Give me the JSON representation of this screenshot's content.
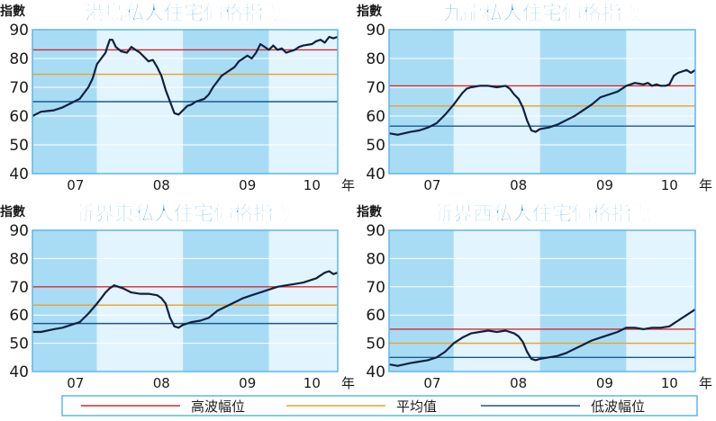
{
  "colors": {
    "high": "#d42a2a",
    "average": "#f0a020",
    "low": "#1a5a8a",
    "title": "#1a8ad2",
    "index_line": "#102040",
    "band_dark": "#a8dcf5",
    "band_light": "#e2f4fd",
    "frame": "#5ab8e8"
  },
  "legend": {
    "high": "高波幅位",
    "average": "平均值",
    "low": "低波幅位"
  },
  "chart_data": [
    {
      "type": "line",
      "title": "港島私人住宅價格指數",
      "ylabel": "指數",
      "xunit": "年",
      "ylim": [
        40,
        90
      ],
      "yticks": [
        "40",
        "50",
        "60",
        "70",
        "80",
        "90"
      ],
      "xlim": [
        2006.75,
        2010.3
      ],
      "xticks": [
        {
          "label": "07",
          "x": 2007.25
        },
        {
          "label": "08",
          "x": 2008.25
        },
        {
          "label": "09",
          "x": 2009.25
        },
        {
          "label": "10",
          "x": 2010.0
        }
      ],
      "reference_lines": {
        "high": 83,
        "average": 74.5,
        "low": 65
      },
      "series": [
        {
          "x": [
            2006.75,
            2006.85,
            2007.0,
            2007.1,
            2007.2,
            2007.3,
            2007.4,
            2007.45,
            2007.5,
            2007.55,
            2007.6,
            2007.62,
            2007.65,
            2007.68,
            2007.72,
            2007.78,
            2007.85,
            2007.9,
            2007.95,
            2008.0,
            2008.05,
            2008.1,
            2008.15,
            2008.2,
            2008.25,
            2008.3,
            2008.35,
            2008.4,
            2008.45,
            2008.5,
            2008.55,
            2008.6,
            2008.65,
            2008.7,
            2008.75,
            2008.8,
            2008.85,
            2008.9,
            2008.95,
            2009.0,
            2009.05,
            2009.1,
            2009.15,
            2009.2,
            2009.25,
            2009.3,
            2009.35,
            2009.4,
            2009.5,
            2009.55,
            2009.6,
            2009.65,
            2009.7,
            2009.75,
            2009.8,
            2009.85,
            2009.9,
            2010.0,
            2010.05,
            2010.1,
            2010.15,
            2010.2,
            2010.25,
            2010.3
          ],
          "values": [
            60.0,
            61.5,
            62.0,
            63.0,
            64.5,
            66.0,
            70.0,
            73.0,
            78.0,
            80.0,
            82.0,
            84.0,
            86.5,
            86.5,
            84.0,
            82.5,
            82.0,
            84.0,
            83.0,
            82.0,
            80.5,
            79.0,
            79.5,
            77.0,
            74.0,
            69.0,
            65.0,
            61.0,
            60.5,
            62.0,
            63.5,
            64.0,
            65.0,
            65.5,
            66.0,
            67.5,
            70.0,
            72.0,
            74.0,
            75.0,
            76.0,
            77.0,
            79.0,
            80.0,
            81.0,
            80.0,
            82.0,
            85.0,
            83.0,
            84.5,
            83.0,
            83.5,
            82.0,
            82.5,
            83.0,
            84.0,
            84.5,
            85.0,
            86.0,
            86.5,
            85.5,
            87.5,
            87.0,
            87.5
          ]
        }
      ]
    },
    {
      "type": "line",
      "title": "九龍私人住宅價格指數",
      "ylabel": "指數",
      "xunit": "年",
      "ylim": [
        40,
        90
      ],
      "yticks": [
        "40",
        "50",
        "60",
        "70",
        "80",
        "90"
      ],
      "xlim": [
        2006.75,
        2010.3
      ],
      "xticks": [
        {
          "label": "07",
          "x": 2007.25
        },
        {
          "label": "08",
          "x": 2008.25
        },
        {
          "label": "09",
          "x": 2009.25
        },
        {
          "label": "10",
          "x": 2010.0
        }
      ],
      "reference_lines": {
        "high": 70.5,
        "average": 63.5,
        "low": 56.5
      },
      "series": [
        {
          "x": [
            2006.75,
            2006.85,
            2007.0,
            2007.1,
            2007.2,
            2007.3,
            2007.4,
            2007.5,
            2007.55,
            2007.6,
            2007.65,
            2007.7,
            2007.8,
            2007.9,
            2008.0,
            2008.1,
            2008.15,
            2008.2,
            2008.25,
            2008.3,
            2008.35,
            2008.4,
            2008.45,
            2008.5,
            2008.6,
            2008.7,
            2008.8,
            2008.9,
            2009.0,
            2009.1,
            2009.2,
            2009.3,
            2009.4,
            2009.5,
            2009.6,
            2009.7,
            2009.75,
            2009.8,
            2009.85,
            2009.9,
            2009.95,
            2010.0,
            2010.05,
            2010.1,
            2010.2,
            2010.25,
            2010.3
          ],
          "values": [
            54.0,
            53.5,
            54.5,
            55.0,
            56.0,
            57.5,
            60.5,
            64.0,
            66.0,
            68.0,
            69.5,
            70.0,
            70.5,
            70.5,
            70.0,
            70.5,
            69.5,
            67.5,
            66.0,
            63.0,
            58.5,
            55.0,
            54.5,
            55.5,
            56.0,
            57.0,
            58.5,
            60.0,
            62.0,
            64.0,
            66.5,
            67.5,
            68.5,
            70.5,
            71.5,
            71.0,
            71.5,
            70.5,
            71.0,
            70.5,
            70.5,
            71.0,
            74.0,
            75.0,
            76.0,
            75.0,
            76.0
          ]
        }
      ]
    },
    {
      "type": "line",
      "title": "新界東私人住宅價格指數",
      "ylabel": "指數",
      "xunit": "年",
      "ylim": [
        40,
        90
      ],
      "yticks": [
        "40",
        "50",
        "60",
        "70",
        "80",
        "90"
      ],
      "xlim": [
        2006.75,
        2010.3
      ],
      "xticks": [
        {
          "label": "07",
          "x": 2007.25
        },
        {
          "label": "08",
          "x": 2008.25
        },
        {
          "label": "09",
          "x": 2009.25
        },
        {
          "label": "10",
          "x": 2010.0
        }
      ],
      "reference_lines": {
        "high": 70,
        "average": 63.5,
        "low": 57
      },
      "series": [
        {
          "x": [
            2006.75,
            2006.85,
            2007.0,
            2007.1,
            2007.2,
            2007.3,
            2007.4,
            2007.5,
            2007.55,
            2007.6,
            2007.65,
            2007.7,
            2007.75,
            2007.8,
            2007.9,
            2008.0,
            2008.1,
            2008.2,
            2008.25,
            2008.3,
            2008.35,
            2008.4,
            2008.45,
            2008.5,
            2008.6,
            2008.7,
            2008.8,
            2008.9,
            2009.0,
            2009.1,
            2009.2,
            2009.3,
            2009.4,
            2009.5,
            2009.6,
            2009.7,
            2009.8,
            2009.9,
            2010.0,
            2010.05,
            2010.1,
            2010.15,
            2010.2,
            2010.25,
            2010.3
          ],
          "values": [
            54.0,
            54.0,
            55.0,
            55.5,
            56.5,
            57.5,
            60.5,
            64.0,
            66.0,
            68.0,
            69.5,
            70.5,
            70.0,
            69.5,
            68.0,
            67.5,
            67.5,
            67.0,
            66.0,
            64.0,
            59.0,
            56.0,
            55.5,
            56.5,
            57.5,
            58.0,
            59.0,
            61.5,
            63.0,
            64.5,
            66.0,
            67.0,
            68.0,
            69.0,
            70.0,
            70.5,
            71.0,
            71.5,
            72.5,
            73.0,
            74.0,
            75.0,
            75.5,
            74.5,
            75.0
          ]
        }
      ]
    },
    {
      "type": "line",
      "title": "新界西私人住宅價格指數",
      "ylabel": "指數",
      "xunit": "年",
      "ylim": [
        40,
        90
      ],
      "yticks": [
        "40",
        "50",
        "60",
        "70",
        "80",
        "90"
      ],
      "xlim": [
        2006.75,
        2010.3
      ],
      "xticks": [
        {
          "label": "07",
          "x": 2007.25
        },
        {
          "label": "08",
          "x": 2008.25
        },
        {
          "label": "09",
          "x": 2009.25
        },
        {
          "label": "10",
          "x": 2010.0
        }
      ],
      "reference_lines": {
        "high": 55,
        "average": 50,
        "low": 45
      },
      "series": [
        {
          "x": [
            2006.75,
            2006.85,
            2007.0,
            2007.1,
            2007.2,
            2007.3,
            2007.4,
            2007.5,
            2007.6,
            2007.7,
            2007.8,
            2007.9,
            2008.0,
            2008.1,
            2008.2,
            2008.25,
            2008.3,
            2008.35,
            2008.4,
            2008.45,
            2008.5,
            2008.6,
            2008.7,
            2008.8,
            2008.9,
            2009.0,
            2009.1,
            2009.2,
            2009.3,
            2009.4,
            2009.5,
            2009.6,
            2009.7,
            2009.8,
            2009.9,
            2010.0,
            2010.05,
            2010.1,
            2010.15,
            2010.2,
            2010.25,
            2010.3
          ],
          "values": [
            42.5,
            42.0,
            43.0,
            43.5,
            44.0,
            45.0,
            47.0,
            50.0,
            52.0,
            53.5,
            54.0,
            54.5,
            54.0,
            54.5,
            53.5,
            52.5,
            50.5,
            47.0,
            44.5,
            44.0,
            44.5,
            45.0,
            45.5,
            46.5,
            48.0,
            49.5,
            51.0,
            52.0,
            53.0,
            54.0,
            55.5,
            55.5,
            55.0,
            55.5,
            55.5,
            56.0,
            57.0,
            58.0,
            59.0,
            60.0,
            61.0,
            62.0
          ]
        }
      ]
    }
  ]
}
